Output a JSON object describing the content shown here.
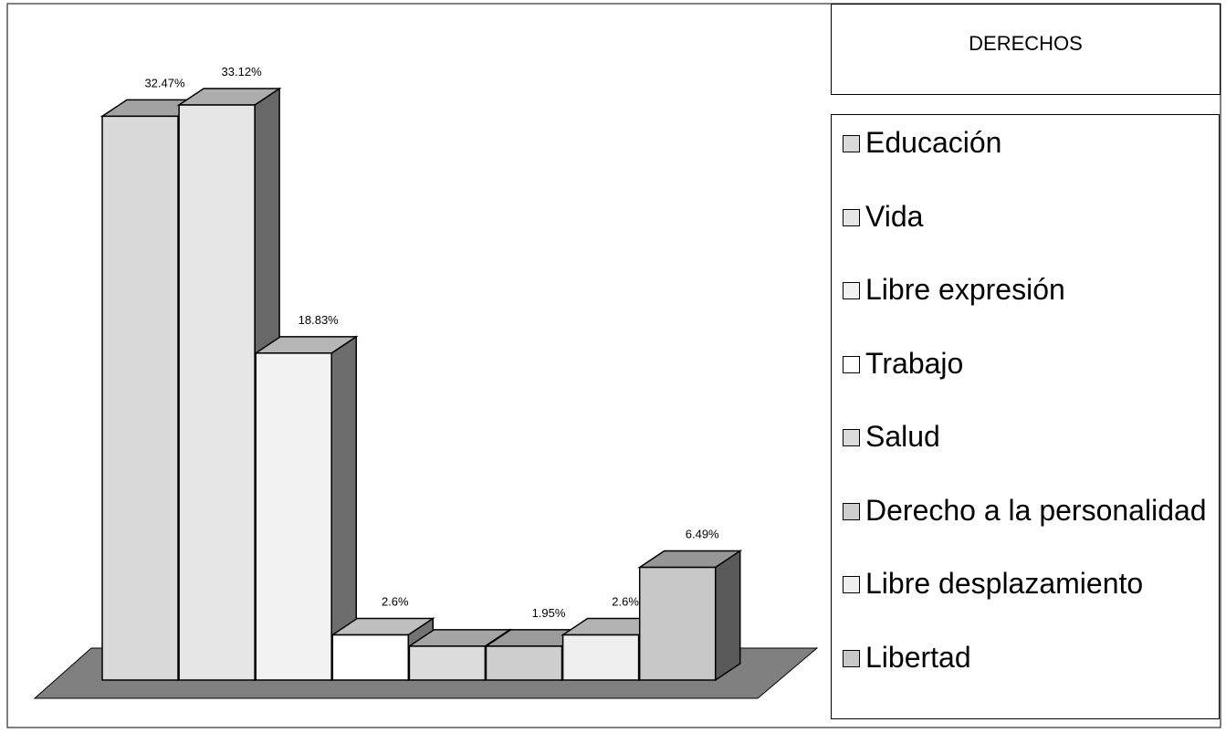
{
  "chart_data": {
    "type": "bar3d",
    "title": "DERECHOS",
    "categories": [
      "Educación",
      "Vida",
      "Libre expresión",
      "Trabajo",
      "Salud",
      "Derecho a la personalidad",
      "Libre desplazamiento",
      "Libertad"
    ],
    "values": [
      32.47,
      33.12,
      18.83,
      2.6,
      1.95,
      1.95,
      2.6,
      6.49
    ],
    "value_labels": [
      "32.47%",
      "33.12%",
      "18.83%",
      "2.6%",
      null,
      "1.95%",
      "2.6%",
      "6.49%"
    ],
    "colors": [
      "#d9d9d9",
      "#e6e6e6",
      "#f2f2f2",
      "#ffffff",
      "#dcdcdc",
      "#cfcfcf",
      "#efefef",
      "#c8c8c8"
    ],
    "legend": "right"
  }
}
